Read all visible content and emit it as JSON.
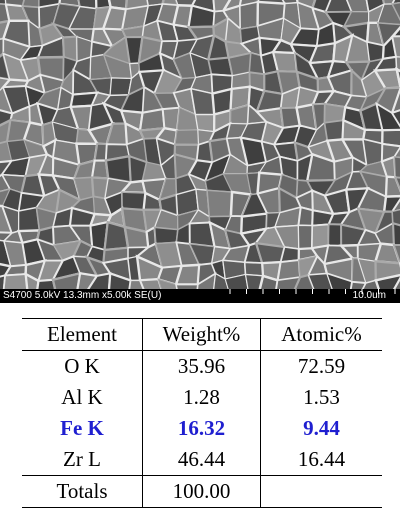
{
  "image": {
    "caption": "S4700 5.0kV 13.3mm x5.00k SE(U)",
    "scale": "10.0um"
  },
  "table": {
    "header": [
      "Element",
      "Weight%",
      "Atomic%"
    ],
    "rows": [
      [
        "O K",
        "35.96",
        "72.59"
      ],
      [
        "Al K",
        "1.28",
        "1.53"
      ],
      [
        "Fe K",
        "16.32",
        "9.44"
      ],
      [
        "Zr L",
        "46.44",
        "16.44"
      ],
      [
        "Totals",
        "100.00"
      ]
    ]
  }
}
